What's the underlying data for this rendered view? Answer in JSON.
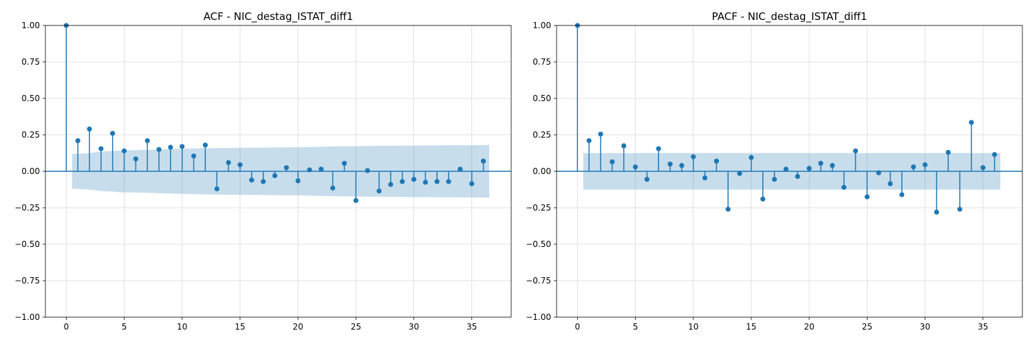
{
  "chart_data": [
    {
      "type": "stem",
      "title": "ACF - NIC_destag_ISTAT_diff1",
      "xlabel": "",
      "ylabel": "",
      "xlim": [
        -1.8,
        38.4
      ],
      "ylim": [
        -1.0,
        1.0
      ],
      "xticks": [
        0,
        5,
        10,
        15,
        20,
        25,
        30,
        35
      ],
      "yticks": [
        -1.0,
        -0.75,
        -0.5,
        -0.25,
        0.0,
        0.25,
        0.5,
        0.75,
        1.0
      ],
      "ytick_labels": [
        "−1.00",
        "−0.75",
        "−0.50",
        "−0.25",
        "0.00",
        "0.25",
        "0.50",
        "0.75",
        "1.00"
      ],
      "grid": true,
      "lags": [
        0,
        1,
        2,
        3,
        4,
        5,
        6,
        7,
        8,
        9,
        10,
        11,
        12,
        13,
        14,
        15,
        16,
        17,
        18,
        19,
        20,
        21,
        22,
        23,
        24,
        25,
        26,
        27,
        28,
        29,
        30,
        31,
        32,
        33,
        34,
        35,
        36
      ],
      "values": [
        1.0,
        0.21,
        0.29,
        0.155,
        0.26,
        0.14,
        0.085,
        0.21,
        0.15,
        0.165,
        0.17,
        0.105,
        0.18,
        -0.12,
        0.06,
        0.045,
        -0.06,
        -0.07,
        -0.03,
        0.025,
        -0.065,
        0.01,
        0.015,
        -0.115,
        0.055,
        -0.2,
        0.005,
        -0.135,
        -0.09,
        -0.07,
        -0.055,
        -0.075,
        -0.07,
        -0.07,
        0.015,
        -0.085,
        0.07
      ],
      "confidence_band": {
        "x": [
          0.5,
          1,
          2,
          3,
          4,
          5,
          6,
          8,
          10,
          13,
          16,
          20,
          24,
          28,
          32,
          36.5
        ],
        "upper": [
          0.12,
          0.12,
          0.125,
          0.135,
          0.14,
          0.145,
          0.145,
          0.15,
          0.155,
          0.16,
          0.162,
          0.165,
          0.172,
          0.175,
          0.178,
          0.18
        ]
      }
    },
    {
      "type": "stem",
      "title": "PACF - NIC_destag_ISTAT_diff1",
      "xlabel": "",
      "ylabel": "",
      "xlim": [
        -1.8,
        38.4
      ],
      "ylim": [
        -1.0,
        1.0
      ],
      "xticks": [
        0,
        5,
        10,
        15,
        20,
        25,
        30,
        35
      ],
      "yticks": [
        -1.0,
        -0.75,
        -0.5,
        -0.25,
        0.0,
        0.25,
        0.5,
        0.75,
        1.0
      ],
      "ytick_labels": [
        "−1.00",
        "−0.75",
        "−0.50",
        "−0.25",
        "0.00",
        "0.25",
        "0.50",
        "0.75",
        "1.00"
      ],
      "grid": true,
      "lags": [
        0,
        1,
        2,
        3,
        4,
        5,
        6,
        7,
        8,
        9,
        10,
        11,
        12,
        13,
        14,
        15,
        16,
        17,
        18,
        19,
        20,
        21,
        22,
        23,
        24,
        25,
        26,
        27,
        28,
        29,
        30,
        31,
        32,
        33,
        34,
        35,
        36
      ],
      "values": [
        1.0,
        0.21,
        0.255,
        0.065,
        0.175,
        0.03,
        -0.055,
        0.155,
        0.05,
        0.04,
        0.1,
        -0.045,
        0.07,
        -0.26,
        -0.015,
        0.095,
        -0.19,
        -0.055,
        0.015,
        -0.035,
        0.02,
        0.055,
        0.04,
        -0.11,
        0.14,
        -0.175,
        -0.01,
        -0.085,
        -0.16,
        0.03,
        0.045,
        -0.28,
        0.13,
        -0.26,
        0.335,
        0.025,
        0.115
      ],
      "confidence_band": {
        "x": [
          0.5,
          36.5
        ],
        "upper": [
          0.125,
          0.125
        ]
      }
    }
  ]
}
